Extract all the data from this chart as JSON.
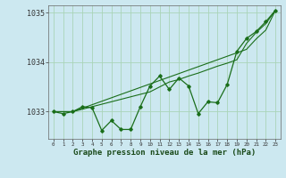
{
  "x": [
    0,
    1,
    2,
    3,
    4,
    5,
    6,
    7,
    8,
    9,
    10,
    11,
    12,
    13,
    14,
    15,
    16,
    17,
    18,
    19,
    20,
    21,
    22,
    23
  ],
  "y_main": [
    1033.0,
    1032.96,
    1033.0,
    1033.1,
    1033.08,
    1032.62,
    1032.82,
    1032.64,
    1032.64,
    1033.1,
    1033.52,
    1033.72,
    1033.45,
    1033.68,
    1033.52,
    1032.96,
    1033.2,
    1033.18,
    1033.55,
    1034.22,
    1034.48,
    1034.62,
    1034.82,
    1035.05
  ],
  "y_line_low": [
    1033.0,
    1033.0,
    1033.0,
    1033.05,
    1033.1,
    1033.15,
    1033.2,
    1033.25,
    1033.3,
    1033.35,
    1033.4,
    1033.5,
    1033.6,
    1033.65,
    1033.72,
    1033.78,
    1033.85,
    1033.92,
    1033.98,
    1034.05,
    1034.38,
    1034.6,
    1034.78,
    1035.05
  ],
  "y_line_high": [
    1033.0,
    1033.0,
    1033.0,
    1033.07,
    1033.14,
    1033.21,
    1033.28,
    1033.35,
    1033.42,
    1033.49,
    1033.56,
    1033.63,
    1033.7,
    1033.77,
    1033.84,
    1033.91,
    1033.98,
    1034.05,
    1034.12,
    1034.19,
    1034.26,
    1034.47,
    1034.65,
    1035.05
  ],
  "bg_color": "#cce8f0",
  "grid_color": "#aad4b8",
  "line_color": "#1a6e1a",
  "ylabel_ticks": [
    1033,
    1034,
    1035
  ],
  "xlabel_label": "Graphe pression niveau de la mer (hPa)",
  "ylim": [
    1032.45,
    1035.15
  ],
  "xlim": [
    -0.5,
    23.5
  ]
}
